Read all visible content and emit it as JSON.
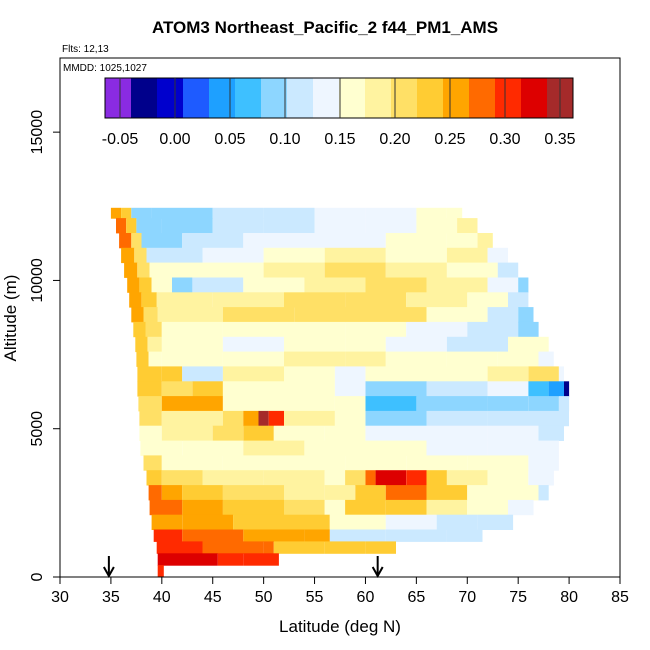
{
  "chart_data": {
    "type": "heatmap",
    "title": "ATOM3 Northeast_Pacific_2 f44_PM1_AMS",
    "flights_label": "Flts: 12,13",
    "mmdd_label": "MMDD: 1025,1027",
    "xlabel": "Latitude (deg N)",
    "ylabel": "Altitude (m)",
    "xlim": [
      30,
      85
    ],
    "ylim": [
      0,
      17500
    ],
    "x_ticks": [
      "30",
      "35",
      "40",
      "45",
      "50",
      "55",
      "60",
      "65",
      "70",
      "75",
      "80",
      "85"
    ],
    "y_ticks": [
      "0",
      "5000",
      "10000",
      "15000"
    ],
    "colorbar": {
      "ticks": [
        "-0.05",
        "0.00",
        "0.05",
        "0.10",
        "0.15",
        "0.20",
        "0.25",
        "0.30",
        "0.35"
      ],
      "colors": [
        "#8a2be2",
        "#00008b",
        "#0000cd",
        "#1e5bff",
        "#1ea0ff",
        "#3ec0ff",
        "#8dd6ff",
        "#cbe9ff",
        "#eef6ff",
        "#ffffd0",
        "#fff3a0",
        "#ffe066",
        "#ffcc33",
        "#ffa500",
        "#ff6a00",
        "#ff2a00",
        "#dd0000",
        "#a52a2a"
      ]
    },
    "markers": [
      {
        "lat": 34.8,
        "label": "down-arrow"
      },
      {
        "lat": 61.2,
        "label": "down-arrow"
      }
    ],
    "rows": [
      {
        "alt0": 12100,
        "alt1": 12450,
        "lat0": 35.0,
        "lat1": 69.5,
        "cells": [
          [
            35,
            0.26
          ],
          [
            36,
            0.22
          ],
          [
            37,
            0.1
          ],
          [
            39,
            0.1
          ],
          [
            45,
            0.11
          ],
          [
            50,
            0.12
          ],
          [
            55,
            0.13
          ],
          [
            60,
            0.14
          ],
          [
            65,
            0.15
          ],
          [
            68,
            0.17
          ]
        ]
      },
      {
        "alt0": 11600,
        "alt1": 12100,
        "lat0": 35.5,
        "lat1": 71.0,
        "cells": [
          [
            35.5,
            0.27
          ],
          [
            36.5,
            0.22
          ],
          [
            37.5,
            0.09
          ],
          [
            40,
            0.1
          ],
          [
            45,
            0.11
          ],
          [
            50,
            0.12
          ],
          [
            55,
            0.13
          ],
          [
            60,
            0.14
          ],
          [
            65,
            0.16
          ],
          [
            69,
            0.18
          ]
        ]
      },
      {
        "alt0": 11100,
        "alt1": 11600,
        "lat0": 35.8,
        "lat1": 72.5,
        "cells": [
          [
            35.8,
            0.27
          ],
          [
            37,
            0.21
          ],
          [
            38,
            0.1
          ],
          [
            42,
            0.11
          ],
          [
            48,
            0.13
          ],
          [
            55,
            0.14
          ],
          [
            62,
            0.15
          ],
          [
            68,
            0.17
          ],
          [
            71,
            0.19
          ]
        ]
      },
      {
        "alt0": 10600,
        "alt1": 11100,
        "lat0": 36.0,
        "lat1": 74.0,
        "cells": [
          [
            36,
            0.26
          ],
          [
            37.3,
            0.2
          ],
          [
            38.5,
            0.11
          ],
          [
            44,
            0.14
          ],
          [
            50,
            0.17
          ],
          [
            56,
            0.19
          ],
          [
            62,
            0.17
          ],
          [
            68,
            0.18
          ],
          [
            72,
            0.14
          ]
        ]
      },
      {
        "alt0": 10100,
        "alt1": 10600,
        "lat0": 36.3,
        "lat1": 75.0,
        "cells": [
          [
            36.3,
            0.25
          ],
          [
            37.6,
            0.21
          ],
          [
            38.8,
            0.15
          ],
          [
            44,
            0.17
          ],
          [
            50,
            0.19
          ],
          [
            56,
            0.2
          ],
          [
            62,
            0.19
          ],
          [
            68,
            0.17
          ],
          [
            73,
            0.11
          ]
        ]
      },
      {
        "alt0": 9600,
        "alt1": 10100,
        "lat0": 36.6,
        "lat1": 76.0,
        "cells": [
          [
            36.6,
            0.26
          ],
          [
            37.8,
            0.22
          ],
          [
            39,
            0.16
          ],
          [
            41,
            0.09
          ],
          [
            43,
            0.12
          ],
          [
            48,
            0.16
          ],
          [
            54,
            0.19
          ],
          [
            60,
            0.2
          ],
          [
            66,
            0.19
          ],
          [
            72,
            0.14
          ],
          [
            75,
            0.1
          ]
        ]
      },
      {
        "alt0": 9100,
        "alt1": 9600,
        "lat0": 36.8,
        "lat1": 76.0,
        "cells": [
          [
            36.8,
            0.25
          ],
          [
            38,
            0.22
          ],
          [
            39.5,
            0.18
          ],
          [
            45,
            0.19
          ],
          [
            52,
            0.2
          ],
          [
            58,
            0.2
          ],
          [
            64,
            0.19
          ],
          [
            70,
            0.15
          ],
          [
            74,
            0.11
          ]
        ]
      },
      {
        "alt0": 8600,
        "alt1": 9100,
        "lat0": 37.0,
        "lat1": 76.5,
        "cells": [
          [
            37,
            0.25
          ],
          [
            38.2,
            0.21
          ],
          [
            39.6,
            0.19
          ],
          [
            46,
            0.2
          ],
          [
            53,
            0.21
          ],
          [
            60,
            0.2
          ],
          [
            66,
            0.17
          ],
          [
            72,
            0.12
          ],
          [
            75,
            0.1
          ]
        ]
      },
      {
        "alt0": 8100,
        "alt1": 8600,
        "lat0": 37.2,
        "lat1": 77.0,
        "cells": [
          [
            37.2,
            0.24
          ],
          [
            38.4,
            0.2
          ],
          [
            40,
            0.17
          ],
          [
            46,
            0.16
          ],
          [
            52,
            0.15
          ],
          [
            58,
            0.16
          ],
          [
            64,
            0.14
          ],
          [
            70,
            0.11
          ],
          [
            75,
            0.1
          ]
        ]
      },
      {
        "alt0": 7600,
        "alt1": 8100,
        "lat0": 37.4,
        "lat1": 78.0,
        "cells": [
          [
            37.4,
            0.24
          ],
          [
            38.6,
            0.18
          ],
          [
            40,
            0.15
          ],
          [
            46,
            0.14
          ],
          [
            52,
            0.15
          ],
          [
            58,
            0.17
          ],
          [
            62,
            0.14
          ],
          [
            68,
            0.12
          ],
          [
            74,
            0.15
          ],
          [
            77,
            0.17
          ]
        ]
      },
      {
        "alt0": 7100,
        "alt1": 7600,
        "lat0": 37.5,
        "lat1": 78.5,
        "cells": [
          [
            37.5,
            0.23
          ],
          [
            38.7,
            0.16
          ],
          [
            40,
            0.15
          ],
          [
            46,
            0.17
          ],
          [
            52,
            0.18
          ],
          [
            58,
            0.18
          ],
          [
            62,
            0.16
          ],
          [
            68,
            0.15
          ],
          [
            73,
            0.16
          ],
          [
            77,
            0.14
          ]
        ]
      },
      {
        "alt0": 6600,
        "alt1": 7100,
        "lat0": 37.6,
        "lat1": 79.5,
        "cells": [
          [
            37.6,
            0.24
          ],
          [
            40,
            0.22
          ],
          [
            42,
            0.12
          ],
          [
            46,
            0.18
          ],
          [
            52,
            0.17
          ],
          [
            57,
            0.14
          ],
          [
            60,
            0.15
          ],
          [
            66,
            0.16
          ],
          [
            72,
            0.18
          ],
          [
            76,
            0.21
          ],
          [
            79,
            0.14
          ]
        ]
      },
      {
        "alt0": 6100,
        "alt1": 6600,
        "lat0": 37.6,
        "lat1": 80.0,
        "cells": [
          [
            37.6,
            0.24
          ],
          [
            40,
            0.21
          ],
          [
            43,
            0.23
          ],
          [
            46,
            0.16
          ],
          [
            52,
            0.15
          ],
          [
            57,
            0.13
          ],
          [
            60,
            0.1
          ],
          [
            66,
            0.12
          ],
          [
            72,
            0.14
          ],
          [
            76,
            0.07
          ],
          [
            78,
            0.03
          ],
          [
            79.5,
            -0.04
          ]
        ]
      },
      {
        "alt0": 5600,
        "alt1": 6100,
        "lat0": 37.7,
        "lat1": 80.0,
        "cells": [
          [
            37.7,
            0.2
          ],
          [
            40,
            0.25
          ],
          [
            44,
            0.26
          ],
          [
            46,
            0.17
          ],
          [
            52,
            0.16
          ],
          [
            57,
            0.15
          ],
          [
            60,
            0.07
          ],
          [
            65,
            0.08
          ],
          [
            72,
            0.1
          ],
          [
            76,
            0.09
          ],
          [
            79,
            0.11
          ]
        ]
      },
      {
        "alt0": 5100,
        "alt1": 5600,
        "lat0": 37.8,
        "lat1": 80.0,
        "cells": [
          [
            37.8,
            0.2
          ],
          [
            40,
            0.18
          ],
          [
            46,
            0.2
          ],
          [
            48,
            0.26
          ],
          [
            49.5,
            0.34
          ],
          [
            50.5,
            0.31
          ],
          [
            52,
            0.18
          ],
          [
            57,
            0.15
          ],
          [
            60,
            0.1
          ],
          [
            66,
            0.11
          ],
          [
            72,
            0.12
          ],
          [
            77,
            0.12
          ]
        ]
      },
      {
        "alt0": 4600,
        "alt1": 5100,
        "lat0": 37.8,
        "lat1": 79.5,
        "cells": [
          [
            37.8,
            0.17
          ],
          [
            40,
            0.18
          ],
          [
            45,
            0.2
          ],
          [
            48,
            0.23
          ],
          [
            51,
            0.17
          ],
          [
            56,
            0.16
          ],
          [
            60,
            0.14
          ],
          [
            66,
            0.13
          ],
          [
            72,
            0.13
          ],
          [
            77,
            0.11
          ]
        ]
      },
      {
        "alt0": 4100,
        "alt1": 4600,
        "lat0": 37.9,
        "lat1": 79.0,
        "cells": [
          [
            37.9,
            0.16
          ],
          [
            42,
            0.16
          ],
          [
            48,
            0.18
          ],
          [
            54,
            0.16
          ],
          [
            60,
            0.17
          ],
          [
            66,
            0.14
          ],
          [
            72,
            0.14
          ],
          [
            77,
            0.13
          ]
        ]
      },
      {
        "alt0": 3600,
        "alt1": 4100,
        "lat0": 38.2,
        "lat1": 79.0,
        "cells": [
          [
            38.2,
            0.21
          ],
          [
            40,
            0.17
          ],
          [
            46,
            0.17
          ],
          [
            52,
            0.16
          ],
          [
            58,
            0.15
          ],
          [
            64,
            0.16
          ],
          [
            70,
            0.15
          ],
          [
            76,
            0.14
          ]
        ]
      },
      {
        "alt0": 3100,
        "alt1": 3600,
        "lat0": 38.5,
        "lat1": 78.5,
        "cells": [
          [
            38.5,
            0.24
          ],
          [
            40,
            0.21
          ],
          [
            44,
            0.19
          ],
          [
            50,
            0.18
          ],
          [
            56,
            0.17
          ],
          [
            58,
            0.2
          ],
          [
            60,
            0.27
          ],
          [
            61,
            0.33
          ],
          [
            64,
            0.3
          ],
          [
            66,
            0.24
          ],
          [
            68,
            0.19
          ],
          [
            72,
            0.16
          ],
          [
            76,
            0.13
          ]
        ]
      },
      {
        "alt0": 2600,
        "alt1": 3100,
        "lat0": 38.7,
        "lat1": 78.0,
        "cells": [
          [
            38.7,
            0.28
          ],
          [
            40,
            0.26
          ],
          [
            42,
            0.22
          ],
          [
            46,
            0.2
          ],
          [
            52,
            0.19
          ],
          [
            56,
            0.18
          ],
          [
            59,
            0.22
          ],
          [
            62,
            0.27
          ],
          [
            66,
            0.24
          ],
          [
            70,
            0.17
          ],
          [
            74,
            0.15
          ],
          [
            77,
            0.11
          ]
        ]
      },
      {
        "alt0": 2100,
        "alt1": 2600,
        "lat0": 38.8,
        "lat1": 76.5,
        "cells": [
          [
            38.8,
            0.28
          ],
          [
            42,
            0.25
          ],
          [
            46,
            0.23
          ],
          [
            52,
            0.2
          ],
          [
            56,
            0.17
          ],
          [
            58,
            0.22
          ],
          [
            62,
            0.23
          ],
          [
            66,
            0.19
          ],
          [
            70,
            0.16
          ],
          [
            74,
            0.14
          ]
        ]
      },
      {
        "alt0": 1600,
        "alt1": 2100,
        "lat0": 39.0,
        "lat1": 74.5,
        "cells": [
          [
            39,
            0.26
          ],
          [
            42,
            0.25
          ],
          [
            47,
            0.24
          ],
          [
            52,
            0.23
          ],
          [
            56.5,
            0.15
          ],
          [
            62,
            0.14
          ],
          [
            67,
            0.12
          ],
          [
            71,
            0.11
          ]
        ]
      },
      {
        "alt0": 1200,
        "alt1": 1600,
        "lat0": 39.2,
        "lat1": 71.5,
        "cells": [
          [
            39.2,
            0.29
          ],
          [
            42,
            0.27
          ],
          [
            48,
            0.25
          ],
          [
            54,
            0.25
          ],
          [
            56.5,
            0.12
          ],
          [
            62,
            0.11
          ],
          [
            68,
            0.11
          ]
        ]
      },
      {
        "alt0": 800,
        "alt1": 1200,
        "lat0": 39.5,
        "lat1": 63.0,
        "cells": [
          [
            39.5,
            0.3
          ],
          [
            44,
            0.28
          ],
          [
            50,
            0.27
          ],
          [
            51,
            0.23
          ],
          [
            56,
            0.22
          ],
          [
            60,
            0.23
          ]
        ]
      },
      {
        "alt0": 400,
        "alt1": 800,
        "lat0": 39.6,
        "lat1": 51.5,
        "cells": [
          [
            39.6,
            0.32
          ],
          [
            45.5,
            0.29
          ],
          [
            48,
            0.29
          ]
        ]
      },
      {
        "alt0": 0,
        "alt1": 400,
        "lat0": 39.6,
        "lat1": 40.2,
        "cells": [
          [
            39.6,
            0.3
          ]
        ]
      }
    ]
  }
}
